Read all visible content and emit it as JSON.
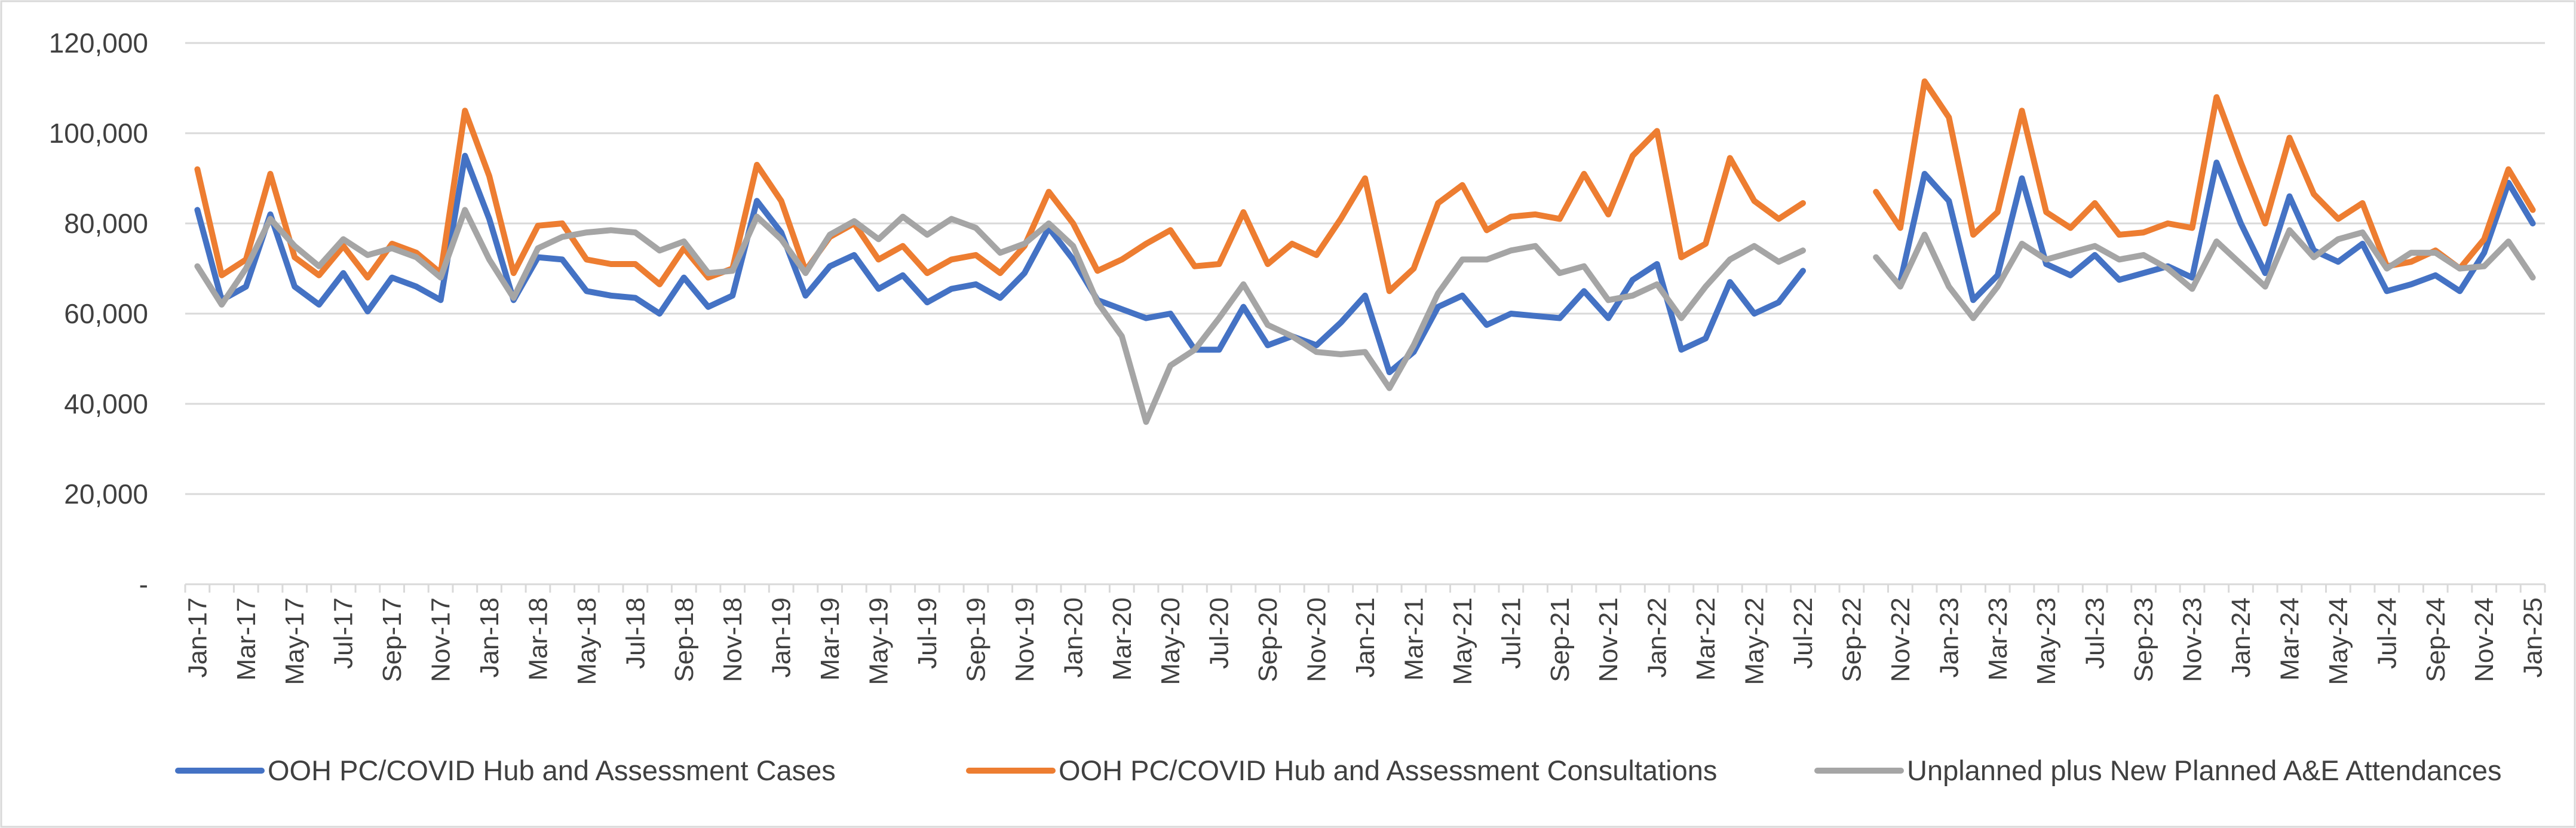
{
  "chart_data": {
    "type": "line",
    "title": "",
    "xlabel": "",
    "ylabel": "",
    "ylim": [
      0,
      120000
    ],
    "grid": true,
    "legend_position": "bottom",
    "y_ticks": [
      {
        "value": 0,
        "label": "-"
      },
      {
        "value": 20000,
        "label": "20,000"
      },
      {
        "value": 40000,
        "label": "40,000"
      },
      {
        "value": 60000,
        "label": "60,000"
      },
      {
        "value": 80000,
        "label": "80,000"
      },
      {
        "value": 100000,
        "label": "100,000"
      },
      {
        "value": 120000,
        "label": "120,000"
      }
    ],
    "categories": [
      "Jan-17",
      "Feb-17",
      "Mar-17",
      "Apr-17",
      "May-17",
      "Jun-17",
      "Jul-17",
      "Aug-17",
      "Sep-17",
      "Oct-17",
      "Nov-17",
      "Dec-17",
      "Jan-18",
      "Feb-18",
      "Mar-18",
      "Apr-18",
      "May-18",
      "Jun-18",
      "Jul-18",
      "Aug-18",
      "Sep-18",
      "Oct-18",
      "Nov-18",
      "Dec-18",
      "Jan-19",
      "Feb-19",
      "Mar-19",
      "Apr-19",
      "May-19",
      "Jun-19",
      "Jul-19",
      "Aug-19",
      "Sep-19",
      "Oct-19",
      "Nov-19",
      "Dec-19",
      "Jan-20",
      "Feb-20",
      "Mar-20",
      "Apr-20",
      "May-20",
      "Jun-20",
      "Jul-20",
      "Aug-20",
      "Sep-20",
      "Oct-20",
      "Nov-20",
      "Dec-20",
      "Jan-21",
      "Feb-21",
      "Mar-21",
      "Apr-21",
      "May-21",
      "Jun-21",
      "Jul-21",
      "Aug-21",
      "Sep-21",
      "Oct-21",
      "Nov-21",
      "Dec-21",
      "Jan-22",
      "Feb-22",
      "Mar-22",
      "Apr-22",
      "May-22",
      "Jun-22",
      "Jul-22",
      "Aug-22",
      "Sep-22",
      "Oct-22",
      "Nov-22",
      "Dec-22",
      "Jan-23",
      "Feb-23",
      "Mar-23",
      "Apr-23",
      "May-23",
      "Jun-23",
      "Jul-23",
      "Aug-23",
      "Sep-23",
      "Oct-23",
      "Nov-23",
      "Dec-23",
      "Jan-24",
      "Feb-24",
      "Mar-24",
      "Apr-24",
      "May-24",
      "Jun-24",
      "Jul-24",
      "Aug-24",
      "Sep-24",
      "Oct-24",
      "Nov-24",
      "Dec-24",
      "Jan-25"
    ],
    "tick_labels": [
      "Jan-17",
      "Mar-17",
      "May-17",
      "Jul-17",
      "Sep-17",
      "Nov-17",
      "Jan-18",
      "Mar-18",
      "May-18",
      "Jul-18",
      "Sep-18",
      "Nov-18",
      "Jan-19",
      "Mar-19",
      "May-19",
      "Jul-19",
      "Sep-19",
      "Nov-19",
      "Jan-20",
      "Mar-20",
      "May-20",
      "Jul-20",
      "Sep-20",
      "Nov-20",
      "Jan-21",
      "Mar-21",
      "May-21",
      "Jul-21",
      "Sep-21",
      "Nov-21",
      "Jan-22",
      "Mar-22",
      "May-22",
      "Jul-22",
      "Sep-22",
      "Nov-22",
      "Jan-23",
      "Mar-23",
      "May-23",
      "Jul-23",
      "Sep-23",
      "Nov-23",
      "Jan-24",
      "Mar-24",
      "May-24",
      "Jul-24",
      "Sep-24",
      "Nov-24",
      "Jan-25"
    ],
    "series": [
      {
        "name": "OOH PC/COVID Hub and Assessment Cases",
        "color": "#4472C4",
        "values": [
          83000,
          63000,
          66000,
          82000,
          66000,
          62000,
          69000,
          60500,
          68000,
          66000,
          63000,
          95000,
          81000,
          63000,
          72500,
          72000,
          65000,
          64000,
          63500,
          60000,
          68000,
          61500,
          64000,
          85000,
          78000,
          64000,
          70500,
          73000,
          65500,
          68500,
          62500,
          65500,
          66500,
          63500,
          69000,
          79000,
          72000,
          63000,
          61000,
          59000,
          60000,
          52000,
          52000,
          61500,
          53000,
          55000,
          53000,
          58000,
          64000,
          47000,
          51500,
          61500,
          64000,
          57500,
          60000,
          59500,
          59000,
          65000,
          59000,
          67500,
          71000,
          52000,
          54500,
          67000,
          60000,
          62500,
          69500,
          null,
          null,
          null,
          67000,
          91000,
          85000,
          63000,
          68500,
          90000,
          71000,
          68500,
          73000,
          67500,
          69000,
          70500,
          68000,
          93500,
          80000,
          69000,
          86000,
          74000,
          71500,
          75500,
          65000,
          66500,
          68500,
          65000,
          73500,
          89000,
          80000
        ]
      },
      {
        "name": "OOH PC/COVID Hub and Assessment Consultations",
        "color": "#ED7D31",
        "values": [
          92000,
          68500,
          72000,
          91000,
          72500,
          68500,
          75000,
          68000,
          75500,
          73500,
          69000,
          105000,
          90500,
          69000,
          79500,
          80000,
          72000,
          71000,
          71000,
          66500,
          74500,
          68000,
          70000,
          93000,
          85000,
          69500,
          77000,
          80000,
          72000,
          75000,
          69000,
          72000,
          73000,
          69000,
          75000,
          87000,
          80000,
          69500,
          72000,
          75500,
          78500,
          70500,
          71000,
          82500,
          71000,
          75500,
          73000,
          81000,
          90000,
          65000,
          70000,
          84500,
          88500,
          78500,
          81500,
          82000,
          81000,
          91000,
          82000,
          95000,
          100500,
          72500,
          75500,
          94500,
          85000,
          81000,
          84500,
          null,
          null,
          87000,
          79000,
          111500,
          103500,
          77500,
          82500,
          105000,
          82500,
          79000,
          84500,
          77500,
          78000,
          80000,
          79000,
          108000,
          93500,
          80000,
          99000,
          86500,
          81000,
          84500,
          70500,
          71500,
          74000,
          70000,
          76500,
          92000,
          83000
        ]
      },
      {
        "name": "Unplanned plus New Planned A&E Attendances",
        "color": "#A5A5A5",
        "values": [
          70500,
          62000,
          70000,
          81000,
          75000,
          70500,
          76500,
          73000,
          74500,
          72500,
          68000,
          83000,
          72000,
          63500,
          74500,
          77000,
          78000,
          78500,
          78000,
          74000,
          76000,
          69000,
          69500,
          81500,
          76500,
          69000,
          77500,
          80500,
          76500,
          81500,
          77500,
          81000,
          79000,
          73500,
          75500,
          80000,
          75000,
          62500,
          55000,
          36000,
          48500,
          52000,
          59000,
          66500,
          57500,
          55000,
          51500,
          51000,
          51500,
          43500,
          53000,
          64500,
          72000,
          72000,
          74000,
          75000,
          69000,
          70500,
          63000,
          64000,
          66500,
          59000,
          66000,
          72000,
          75000,
          71500,
          74000,
          null,
          null,
          72500,
          66000,
          77500,
          66000,
          59000,
          66000,
          75500,
          72000,
          73500,
          75000,
          72000,
          73000,
          70000,
          65500,
          76000,
          71000,
          66000,
          78500,
          72500,
          76500,
          78000,
          70000,
          73500,
          73500,
          70000,
          70500,
          76000,
          68000
        ]
      }
    ]
  }
}
